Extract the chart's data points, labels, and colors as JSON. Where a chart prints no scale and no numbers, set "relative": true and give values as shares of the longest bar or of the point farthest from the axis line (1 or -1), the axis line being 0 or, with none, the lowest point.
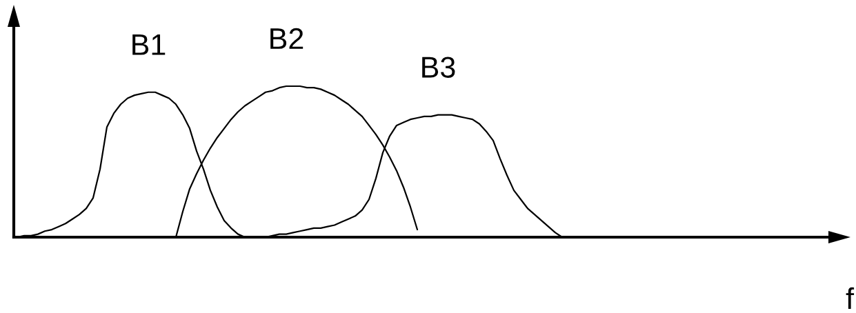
{
  "chart_data": {
    "type": "line",
    "relative": true,
    "xlabel": "f",
    "categories": [
      null,
      null,
      null,
      null,
      null,
      null,
      null,
      null,
      null,
      null,
      null,
      null,
      null,
      null,
      null,
      null,
      null,
      null,
      null,
      null,
      null,
      null,
      null,
      null,
      null,
      null,
      null,
      null,
      null,
      null,
      null,
      null,
      null,
      null,
      null,
      null,
      null,
      null,
      null,
      null,
      null,
      null,
      null,
      null,
      null,
      null,
      null,
      null,
      null,
      null,
      null,
      null,
      null,
      null,
      null,
      null,
      null,
      null,
      null,
      null,
      null,
      null,
      null,
      null,
      null,
      null,
      null,
      null,
      null,
      null,
      null,
      null,
      null,
      null,
      null,
      null,
      null,
      null,
      null,
      null,
      null,
      null,
      null,
      null,
      null,
      null,
      null,
      null,
      null,
      null,
      null,
      null,
      null,
      null,
      null,
      null,
      null,
      null,
      null,
      null,
      null,
      null,
      null,
      null,
      null,
      null,
      null,
      null,
      null,
      null,
      null,
      null,
      null,
      null,
      null,
      null,
      null,
      null
    ],
    "series": [
      {
        "name": "B1",
        "color": "#000000",
        "values": [
          0,
          0.01,
          0.01,
          0.02,
          0.04,
          0.05,
          0.07,
          0.09,
          0.12,
          0.15,
          0.19,
          0.26,
          0.45,
          0.73,
          0.82,
          0.88,
          0.92,
          0.94,
          0.95,
          0.96,
          0.96,
          0.94,
          0.92,
          0.88,
          0.81,
          0.72,
          0.57,
          0.45,
          0.31,
          0.2,
          0.11,
          0.06,
          0.02,
          0,
          null,
          null,
          null,
          null,
          null,
          null,
          null,
          null,
          null,
          null,
          null,
          null,
          null,
          null,
          null,
          null,
          null,
          null,
          null,
          null,
          null,
          null,
          null,
          null,
          null,
          null,
          null,
          null,
          null,
          null,
          null,
          null,
          null,
          null,
          null,
          null,
          null,
          null,
          null,
          null,
          null,
          null,
          null,
          null,
          null,
          null,
          null,
          null,
          null,
          null,
          null,
          null,
          null,
          null,
          null,
          null,
          null,
          null,
          null,
          null,
          null,
          null,
          null,
          null,
          null,
          null,
          null,
          null,
          null,
          null,
          null,
          null,
          null,
          null,
          null,
          null,
          null,
          null,
          null,
          null,
          null,
          null,
          null,
          null
        ]
      },
      {
        "name": "B2",
        "color": "#000000",
        "values": [
          null,
          null,
          null,
          null,
          null,
          null,
          null,
          null,
          null,
          null,
          null,
          null,
          null,
          null,
          null,
          null,
          null,
          null,
          null,
          null,
          null,
          null,
          null,
          0,
          0.17,
          0.32,
          0.42,
          0.51,
          0.59,
          0.66,
          0.72,
          0.78,
          0.83,
          0.87,
          0.9,
          0.93,
          0.96,
          0.97,
          0.99,
          1,
          1,
          1,
          0.99,
          0.99,
          0.98,
          0.96,
          0.94,
          0.91,
          0.88,
          0.84,
          0.8,
          0.74,
          0.68,
          0.61,
          0.53,
          0.44,
          0.33,
          0.2,
          0.05,
          null,
          null,
          null,
          null,
          null,
          null,
          null,
          null,
          null,
          null,
          null,
          null,
          null,
          null,
          null,
          null,
          null,
          null,
          null,
          null,
          null,
          null,
          null,
          null,
          null,
          null,
          null,
          null,
          null,
          null,
          null,
          null,
          null,
          null,
          null,
          null,
          null,
          null,
          null,
          null,
          null,
          null,
          null,
          null,
          null,
          null,
          null,
          null,
          null,
          null,
          null,
          null,
          null,
          null,
          null,
          null,
          null,
          null,
          null
        ]
      },
      {
        "name": "B3",
        "color": "#000000",
        "values": [
          null,
          null,
          null,
          null,
          null,
          null,
          null,
          null,
          null,
          null,
          null,
          null,
          null,
          null,
          null,
          null,
          null,
          null,
          null,
          null,
          null,
          null,
          null,
          null,
          null,
          null,
          null,
          null,
          null,
          null,
          null,
          null,
          null,
          null,
          null,
          null,
          0,
          0.01,
          0.02,
          0.02,
          0.03,
          0.04,
          0.05,
          0.06,
          0.06,
          0.07,
          0.08,
          0.1,
          0.12,
          0.14,
          0.18,
          0.25,
          0.39,
          0.56,
          0.67,
          0.74,
          0.76,
          0.78,
          0.79,
          0.8,
          0.8,
          0.81,
          0.81,
          0.81,
          0.8,
          0.79,
          0.78,
          0.75,
          0.7,
          0.64,
          0.52,
          0.41,
          0.31,
          0.25,
          0.19,
          0.15,
          0.11,
          0.07,
          0.03,
          0,
          null,
          null,
          null,
          null,
          null,
          null,
          null,
          null,
          null,
          null,
          null,
          null,
          null,
          null,
          null,
          null,
          null,
          null,
          null,
          null,
          null,
          null,
          null,
          null,
          null,
          null,
          null,
          null,
          null,
          null,
          null,
          null,
          null,
          null,
          null,
          null,
          null,
          null
        ]
      }
    ]
  }
}
